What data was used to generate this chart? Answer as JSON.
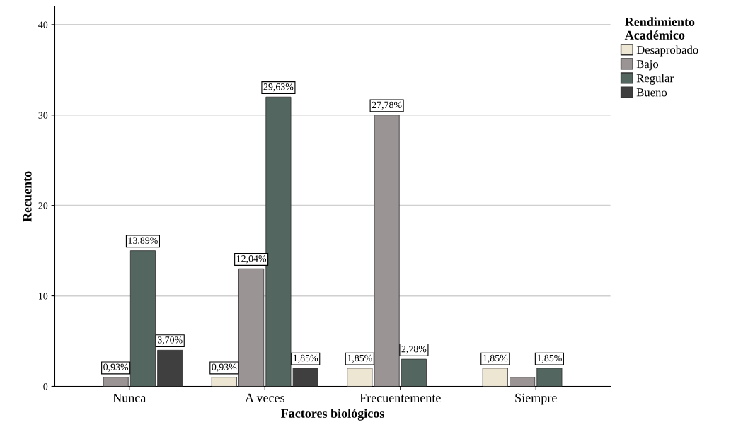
{
  "chart_data": {
    "type": "bar",
    "xlabel": "Factores biológicos",
    "ylabel": "Recuento",
    "legend_title": "Rendimiento\nAcadémico",
    "categories": [
      "Nunca",
      "A veces",
      "Frecuentemente",
      "Siempre"
    ],
    "series": [
      {
        "name": "Desaprobado",
        "color": "#ede6d3",
        "values": [
          null,
          1,
          2,
          2
        ]
      },
      {
        "name": "Bajo",
        "color": "#9b9494",
        "values": [
          1,
          13,
          30,
          1
        ]
      },
      {
        "name": "Regular",
        "color": "#536660",
        "values": [
          15,
          32,
          3,
          2
        ]
      },
      {
        "name": "Bueno",
        "color": "#3f3f3f",
        "values": [
          4,
          2,
          null,
          null
        ]
      }
    ],
    "annotations": [
      {
        "text": "0,93%",
        "x": "Nunca",
        "y": 1
      },
      {
        "text": "13,89%",
        "x": "Nunca",
        "y": 15
      },
      {
        "text": "3,70%",
        "x": "Nunca",
        "y": 4
      },
      {
        "text": "0,93%",
        "x": "A veces",
        "y": 1
      },
      {
        "text": "12,04%",
        "x": "A veces",
        "y": 13
      },
      {
        "text": "29,63%",
        "x": "A veces",
        "y": 32
      },
      {
        "text": "1,85%",
        "x": "A veces",
        "y": 2
      },
      {
        "text": "1,85%",
        "x": "Frecuentemente",
        "y": 2
      },
      {
        "text": "27,78%",
        "x": "Frecuentemente",
        "y": 30
      },
      {
        "text": "2,78%",
        "x": "Frecuentemente",
        "y": 3
      },
      {
        "text": "1,85%",
        "x": "Siempre",
        "y": 2
      },
      {
        "text": "1,85%",
        "x": "Siempre",
        "y": 2
      }
    ],
    "ylim": [
      0,
      42
    ],
    "yticks": [
      0,
      10,
      20,
      30,
      40
    ],
    "grid": "y",
    "legend": "right"
  }
}
